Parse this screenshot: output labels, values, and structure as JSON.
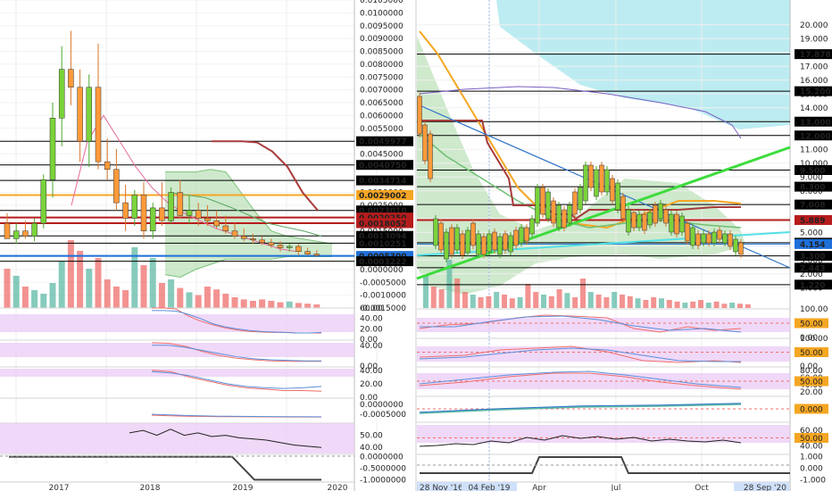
{
  "colors": {
    "up": "#5fb9a6",
    "down": "#ef6f6c",
    "cloud": "#a5d7a3",
    "cloud_blue": "#a6e6ec",
    "orange": "#f5a623",
    "darkred": "#a83a3a",
    "purple_band": "#e9c8f5",
    "trend_green": "#3ddc3d",
    "cyan": "#52e0e6",
    "blue_line": "#2f74c8",
    "axis_tag_dark": "#000000",
    "axis_tag_red": "#b71c1c",
    "axis_tag_orange": "#f5a623",
    "axis_tag_blue": "#1e6fd9"
  },
  "chart_data": [
    {
      "type": "candlestick",
      "panel": "left",
      "x_ticks": [
        "2017",
        "2018",
        "2019",
        "2020"
      ],
      "price_ticks": [
        "0.0105000",
        "0.0100000",
        "0.0095000",
        "0.0090000",
        "0.0085000",
        "0.0080000",
        "0.0075000",
        "0.0070000",
        "0.0065000",
        "0.0060000",
        "0.0055000",
        "0.0050000",
        "0.0045000",
        "0.0040000",
        "0.0035000",
        "0.0030000",
        "0.0025000",
        "0.0020000",
        "0.0015000",
        "0.0010000",
        "0.0005000",
        "0.0000000",
        "-0.0005000",
        "-0.0010000",
        "-0.0015000"
      ],
      "price_ylim": [
        -0.0015,
        0.0105
      ],
      "level_tags": [
        {
          "label": "0.0049977",
          "value": 0.0049977,
          "style": "black"
        },
        {
          "label": "0.0040750",
          "value": 0.004075,
          "style": "black"
        },
        {
          "label": "0.0034714",
          "value": 0.0034714,
          "style": "black"
        },
        {
          "label": "0.0029002",
          "value": 0.0029002,
          "style": "orange"
        },
        {
          "label": "0.0023010",
          "value": 0.002301,
          "style": "black"
        },
        {
          "label": "0.0020250",
          "value": 0.002025,
          "style": "red"
        },
        {
          "label": "0.0018052",
          "value": 0.0018052,
          "style": "red"
        },
        {
          "label": "0.0013094",
          "value": 0.0013094,
          "style": "black"
        },
        {
          "label": "0.0010251",
          "value": 0.0010251,
          "style": "black"
        },
        {
          "label": "0.0005300",
          "value": 0.00053,
          "style": "blue"
        },
        {
          "label": "0.0003222",
          "value": 0.0003222,
          "style": "black"
        }
      ],
      "candles": [
        [
          0.0018,
          0.0022,
          0.0012,
          0.0012
        ],
        [
          0.0012,
          0.0018,
          0.001,
          0.0015
        ],
        [
          0.0015,
          0.0019,
          0.0012,
          0.0013
        ],
        [
          0.0013,
          0.002,
          0.0011,
          0.0018
        ],
        [
          0.0018,
          0.0037,
          0.0016,
          0.0035
        ],
        [
          0.0035,
          0.0065,
          0.0028,
          0.0059
        ],
        [
          0.0059,
          0.0087,
          0.0048,
          0.0078
        ],
        [
          0.0078,
          0.0093,
          0.0064,
          0.0071
        ],
        [
          0.0071,
          0.0078,
          0.0042,
          0.005
        ],
        [
          0.005,
          0.0076,
          0.004,
          0.0071
        ],
        [
          0.0071,
          0.0088,
          0.0039,
          0.0042
        ],
        [
          0.0042,
          0.0051,
          0.0035,
          0.0039
        ],
        [
          0.0039,
          0.0047,
          0.0023,
          0.0026
        ],
        [
          0.0026,
          0.0033,
          0.0015,
          0.002
        ],
        [
          0.002,
          0.0031,
          0.0017,
          0.0029
        ],
        [
          0.0029,
          0.0034,
          0.0012,
          0.0015
        ],
        [
          0.0015,
          0.0026,
          0.0012,
          0.0024
        ],
        [
          0.0024,
          0.0034,
          0.0017,
          0.0019
        ],
        [
          0.0019,
          0.0032,
          0.0018,
          0.003
        ],
        [
          0.003,
          0.0035,
          0.002,
          0.0021
        ],
        [
          0.0021,
          0.0029,
          0.0018,
          0.0023
        ],
        [
          0.0023,
          0.0026,
          0.0017,
          0.002
        ],
        [
          0.002,
          0.0025,
          0.0017,
          0.0019
        ],
        [
          0.0019,
          0.0023,
          0.0016,
          0.0017
        ],
        [
          0.0017,
          0.0021,
          0.0014,
          0.0015
        ],
        [
          0.0015,
          0.0018,
          0.0012,
          0.0013
        ],
        [
          0.0013,
          0.0016,
          0.0011,
          0.0012
        ],
        [
          0.0012,
          0.0014,
          0.001,
          0.00115
        ],
        [
          0.00115,
          0.0013,
          0.00095,
          0.00105
        ],
        [
          0.00105,
          0.0012,
          0.00085,
          0.00095
        ],
        [
          0.00095,
          0.0011,
          0.0007,
          0.00085
        ],
        [
          0.00085,
          0.001,
          0.0007,
          0.0009
        ],
        [
          0.0009,
          0.001,
          0.00055,
          0.0007
        ],
        [
          0.0007,
          0.00085,
          0.00055,
          0.0006
        ],
        [
          0.0006,
          0.00075,
          0.0005,
          0.00055
        ]
      ],
      "volume": [
        0.55,
        0.45,
        0.3,
        0.25,
        0.2,
        0.35,
        0.65,
        0.95,
        0.8,
        0.55,
        0.7,
        0.4,
        0.3,
        0.25,
        0.85,
        0.6,
        0.7,
        0.35,
        0.4,
        0.28,
        0.22,
        0.18,
        0.3,
        0.26,
        0.2,
        0.15,
        0.12,
        0.1,
        0.12,
        0.1,
        0.08,
        0.09,
        0.07,
        0.06,
        0.05
      ],
      "ichimoku_cloud": {
        "top": [
          0.0038,
          0.0038,
          0.0038,
          0.0039,
          0.0038,
          0.003,
          0.0022,
          0.0015,
          0.0013,
          0.0012,
          0.0011,
          0.001
        ],
        "bottom": [
          -0.0002,
          -0.0003,
          0.0,
          0.0002,
          0.0004,
          0.0004,
          0.0004,
          0.0004,
          0.0005,
          0.0005,
          0.0005,
          0.0005
        ]
      },
      "darkred_line": [
        0.0049977,
        0.0049977,
        0.0049977,
        0.00495,
        0.0046,
        0.004,
        0.003,
        0.0023
      ],
      "pink_line": [
        0.0025,
        0.005,
        0.006,
        0.005,
        0.004,
        0.0032,
        0.0026,
        0.0022,
        0.0019,
        0.0016,
        0.0014,
        0.0012,
        0.001,
        0.0008,
        0.0007
      ]
    },
    {
      "type": "line",
      "panel": "left-oscillator-1",
      "y_ticks": [
        "60.00",
        "40.00",
        "20.00",
        "0.00"
      ],
      "ylim": [
        0,
        60
      ],
      "series": [
        {
          "color": "#ef6f6c",
          "values": [
            60,
            60,
            58,
            45,
            35,
            28,
            22,
            18,
            15,
            14,
            13,
            13,
            12,
            12,
            12
          ]
        },
        {
          "color": "#5b8fd9",
          "values": [
            55,
            55,
            54,
            48,
            40,
            30,
            24,
            20,
            17,
            15,
            14,
            13,
            12,
            12,
            13
          ]
        }
      ]
    },
    {
      "type": "line",
      "panel": "left-oscillator-2",
      "y_ticks": [
        "40.00",
        "0.00"
      ],
      "ylim": [
        0,
        50
      ],
      "series": [
        {
          "color": "#ef6f6c",
          "values": [
            45,
            44,
            38,
            28,
            20,
            15,
            12,
            10,
            9,
            9,
            9
          ]
        },
        {
          "color": "#5b8fd9",
          "values": [
            40,
            40,
            36,
            30,
            24,
            18,
            14,
            12,
            11,
            10,
            10
          ]
        }
      ]
    },
    {
      "type": "line",
      "panel": "left-oscillator-3",
      "y_ticks": [
        "40.00",
        "20.00",
        "0.00"
      ],
      "ylim": [
        0,
        45
      ],
      "series": [
        {
          "color": "#ef6f6c",
          "values": [
            40,
            38,
            30,
            24,
            18,
            14,
            12,
            10,
            10,
            9
          ]
        },
        {
          "color": "#5b8fd9",
          "values": [
            38,
            36,
            32,
            26,
            20,
            16,
            14,
            13,
            14,
            16
          ]
        }
      ]
    },
    {
      "type": "line",
      "panel": "left-macd",
      "y_ticks": [
        "0.0000000",
        "-0.0005000"
      ],
      "ylim": [
        -0.0009,
        0.0003
      ],
      "series": [
        {
          "color": "#ef6f6c",
          "values": [
            -0.00055,
            -0.0006,
            -0.00062,
            -0.00063,
            -0.00064,
            -0.00064
          ]
        },
        {
          "color": "#5b8fd9",
          "values": [
            -0.0005,
            -0.00056,
            -0.0006,
            -0.00061,
            -0.00062,
            -0.00063
          ]
        }
      ]
    },
    {
      "type": "line",
      "panel": "left-rsi",
      "y_ticks": [
        "50.00",
        "40.00"
      ],
      "ylim": [
        35,
        60
      ],
      "series": [
        {
          "color": "#222",
          "values": [
            52,
            54,
            50,
            55,
            50,
            52,
            49,
            50,
            48,
            47,
            46,
            44,
            42,
            41,
            40
          ]
        }
      ]
    },
    {
      "type": "line",
      "panel": "left-step",
      "y_ticks": [
        "0.0000000",
        "-0.5000000",
        "-1.0000000"
      ],
      "ylim": [
        -1.1,
        0.1
      ],
      "series": [
        {
          "color": "#444",
          "values": [
            0,
            0,
            0,
            0,
            0,
            0,
            0,
            0,
            0,
            0,
            0,
            -1,
            -1,
            -1,
            -1
          ]
        }
      ]
    },
    {
      "type": "candlestick",
      "panel": "right",
      "x_ticks": [
        "28 Nov '16",
        "04 Feb '19",
        "Apr",
        "Jul",
        "Oct",
        "28 Sep '20"
      ],
      "price_ticks": [
        "20.000",
        "19.000",
        "18.000",
        "17.000",
        "16.000",
        "15.000",
        "14.000",
        "13.000",
        "12.000",
        "11.000",
        "10.000",
        "9.000",
        "8.000",
        "7.000",
        "6.000",
        "5.000",
        "4.000",
        "3.000",
        "2.000",
        "1.000"
      ],
      "price_ylim": [
        0.5,
        20.5
      ],
      "level_tags": [
        {
          "label": "17.878",
          "value": 17.878,
          "style": "black"
        },
        {
          "label": "15.200",
          "value": 15.2,
          "style": "black"
        },
        {
          "label": "13.000",
          "value": 13.0,
          "style": "black"
        },
        {
          "label": "12.000",
          "value": 12.0,
          "style": "black"
        },
        {
          "label": "9.500",
          "value": 9.5,
          "style": "black"
        },
        {
          "label": "8.300",
          "value": 8.3,
          "style": "black"
        },
        {
          "label": "7.008",
          "value": 7.008,
          "style": "black"
        },
        {
          "label": "5.889",
          "value": 5.889,
          "style": "red"
        },
        {
          "label": "4.250",
          "value": 4.25,
          "style": "black"
        },
        {
          "label": "4.154",
          "value": 4.154,
          "style": "blue"
        },
        {
          "label": "3.300",
          "value": 3.3,
          "style": "black"
        },
        {
          "label": "2.443",
          "value": 2.443,
          "style": "black"
        },
        {
          "label": "1.220",
          "value": 1.22,
          "style": "black"
        }
      ],
      "volume": [
        0.6,
        0.4,
        0.35,
        0.9,
        0.55,
        0.3,
        0.25,
        0.2,
        0.22,
        0.3,
        0.25,
        0.18,
        0.2,
        0.45,
        0.3,
        0.25,
        0.22,
        0.35,
        0.28,
        0.2,
        0.55,
        0.3,
        0.25,
        0.2,
        0.3,
        0.25,
        0.22,
        0.18,
        0.15,
        0.2,
        0.18,
        0.15,
        0.12,
        0.1,
        0.12,
        0.15,
        0.1,
        0.12,
        0.08,
        0.1,
        0.08,
        0.07
      ]
    },
    {
      "type": "line",
      "panel": "right-osc-1",
      "y_ticks": [
        "100.00",
        "50.00",
        "0.00"
      ],
      "ylim": [
        0,
        100
      ],
      "tag": "50.00"
    },
    {
      "type": "line",
      "panel": "right-osc-2",
      "y_ticks": [
        "100.00",
        "50.00",
        "0.00"
      ],
      "ylim": [
        0,
        100
      ],
      "tag": "50.00"
    },
    {
      "type": "line",
      "panel": "right-osc-3",
      "y_ticks": [
        "80.00",
        "60.00",
        "40.00",
        "20.00"
      ],
      "ylim": [
        10,
        90
      ],
      "tag": "50.00"
    },
    {
      "type": "line",
      "panel": "right-macd",
      "y_ticks": [
        "0.000"
      ],
      "ylim": [
        -0.5,
        0.5
      ],
      "tag": "0.000"
    },
    {
      "type": "line",
      "panel": "right-rsi",
      "y_ticks": [
        "60.00",
        "40.00"
      ],
      "ylim": [
        30,
        70
      ],
      "tag": "50.00"
    },
    {
      "type": "line",
      "panel": "right-step",
      "y_ticks": [
        "1.000",
        "0.000",
        "-1.000"
      ],
      "ylim": [
        -1.2,
        1.2
      ]
    }
  ]
}
